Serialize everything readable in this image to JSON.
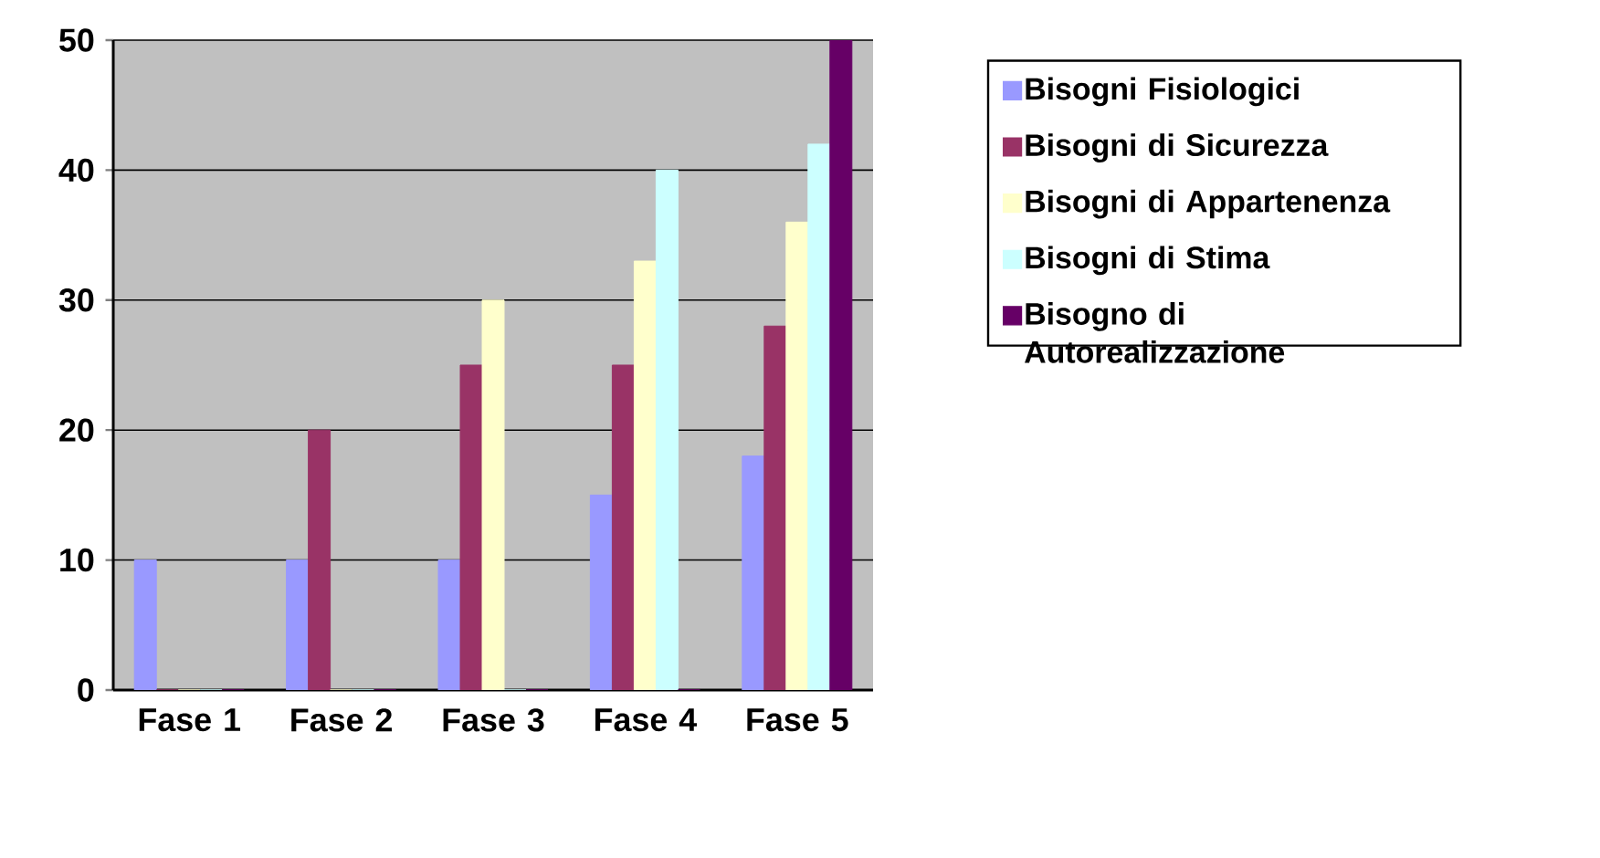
{
  "chart_data": {
    "type": "bar",
    "categories": [
      "Fase 1",
      "Fase 2",
      "Fase 3",
      "Fase 4",
      "Fase 5"
    ],
    "series": [
      {
        "name": "Bisogni Fisiologici",
        "color": "#9999ff",
        "values": [
          10,
          10,
          10,
          15,
          18
        ]
      },
      {
        "name": "Bisogni di Sicurezza",
        "color": "#993366",
        "values": [
          0,
          20,
          25,
          25,
          28
        ]
      },
      {
        "name": "Bisogni di Appartenenza",
        "color": "#ffffcc",
        "values": [
          0,
          0,
          30,
          33,
          36
        ]
      },
      {
        "name": "Bisogni di Stima",
        "color": "#ccffff",
        "values": [
          0,
          0,
          0,
          40,
          42
        ]
      },
      {
        "name": "Bisogno di Autorealizzazione",
        "color": "#660066",
        "values": [
          0,
          0,
          0,
          0,
          50
        ]
      }
    ],
    "ylim": [
      0,
      50
    ],
    "yticks": [
      0,
      10,
      20,
      30,
      40,
      50
    ],
    "grid": "y",
    "legend": "right"
  }
}
